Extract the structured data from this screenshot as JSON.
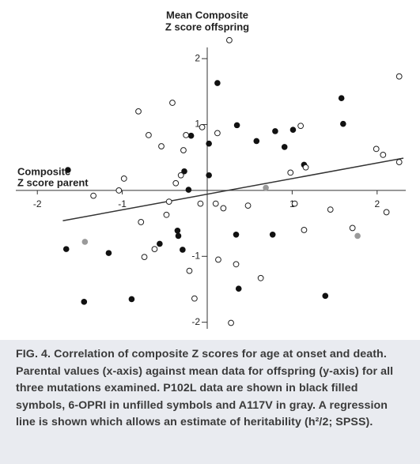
{
  "chart_data": {
    "type": "scatter",
    "title": "Mean Composite",
    "subtitle": "Z score offspring",
    "x_label": [
      "Composite",
      "Z score parent"
    ],
    "xlim": [
      -2.3,
      2.3
    ],
    "ylim": [
      -2.1,
      2.35
    ],
    "xticks": [
      -2,
      -1,
      1,
      2
    ],
    "yticks": [
      -2,
      -1,
      1,
      2
    ],
    "series": [
      {
        "color": "#111111",
        "filled": true,
        "x": [
          0.12,
          -0.19,
          0.35,
          0.02,
          0.58,
          0.8,
          0.91,
          1.01,
          1.14,
          1.6,
          1.58,
          -1.64,
          -0.27,
          0.02,
          -0.22,
          -1.66,
          -1.16,
          -0.56,
          -0.35,
          -0.34,
          -0.29,
          0.34,
          0.77,
          0.37,
          -1.45,
          -0.89,
          1.39
        ],
        "values": [
          1.63,
          0.83,
          0.99,
          0.71,
          0.75,
          0.9,
          0.66,
          0.92,
          0.39,
          1.01,
          1.4,
          0.31,
          0.29,
          0.23,
          0.01,
          -0.89,
          -0.95,
          -0.81,
          -0.61,
          -0.69,
          -0.9,
          -0.67,
          -0.67,
          -1.49,
          -1.69,
          -1.65,
          -1.6
        ]
      },
      {
        "color": "#222222",
        "filled": false,
        "x": [
          0.26,
          -0.41,
          -0.81,
          -0.69,
          -0.54,
          -0.25,
          -0.28,
          -0.06,
          0.12,
          1.1,
          0.98,
          1.16,
          1.99,
          2.07,
          2.26,
          2.26,
          -0.98,
          -1.04,
          -1.34,
          -0.31,
          -0.37,
          -0.45,
          -0.08,
          0.1,
          0.19,
          0.48,
          1.03,
          1.45,
          2.11,
          -0.78,
          -0.48,
          -0.62,
          -0.74,
          -0.21,
          -0.15,
          0.13,
          0.34,
          0.63,
          1.14,
          1.71,
          0.28
        ],
        "values": [
          2.28,
          1.33,
          1.2,
          0.84,
          0.67,
          0.84,
          0.61,
          0.96,
          0.87,
          0.98,
          0.27,
          0.35,
          0.63,
          0.54,
          0.43,
          1.73,
          0.18,
          0,
          -0.08,
          0.23,
          0.11,
          -0.17,
          -0.2,
          -0.2,
          -0.27,
          -0.23,
          -0.2,
          -0.29,
          -0.33,
          -0.48,
          -0.37,
          -0.89,
          -1.01,
          -1.22,
          -1.64,
          -1.05,
          -1.12,
          -1.33,
          -0.6,
          -0.57,
          -2.01
        ]
      },
      {
        "color": "#9a9a9a",
        "filled": true,
        "x": [
          -1.44,
          0.69,
          1.77
        ],
        "values": [
          -0.78,
          0.04,
          -0.69
        ]
      }
    ],
    "regression": {
      "color": "#333333",
      "x": [
        -1.7,
        2.31
      ],
      "y": [
        -0.46,
        0.49
      ]
    },
    "caption": "FIG. 4. Correlation of composite Z scores for age at onset and death. Parental values (x-axis) against mean data for offspring (y-axis) for all three mutations examined. P102L data are shown in black filled symbols, 6-OPRI in unfilled symbols and A117V in gray. A regression line is shown which allows an estimate of heritability (h²/2; SPSS)."
  }
}
